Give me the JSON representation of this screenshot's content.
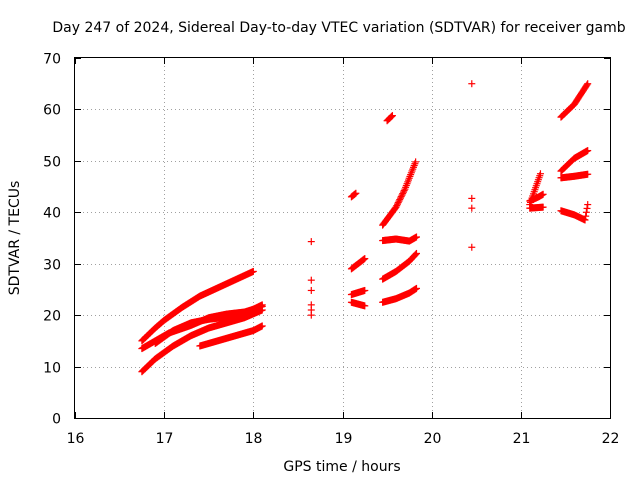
{
  "chart_data": {
    "type": "scatter",
    "title": "Day 247 of 2024, Sidereal Day-to-day VTEC variation (SDTVAR) for receiver gamb",
    "xlabel": "GPS time / hours",
    "ylabel": "SDTVAR / TECUs",
    "xlim": [
      16,
      22
    ],
    "ylim": [
      0,
      70
    ],
    "xticks": [
      "16",
      "17",
      "18",
      "19",
      "20",
      "21",
      "22"
    ],
    "yticks": [
      "0",
      "10",
      "20",
      "30",
      "40",
      "50",
      "60",
      "70"
    ],
    "grid": true,
    "marker_color": "#ff0000",
    "marker": "plus",
    "tracks": [
      {
        "x": [
          16.75,
          16.9,
          17.0,
          17.2,
          17.4,
          17.6,
          17.8,
          18.0
        ],
        "y": [
          15.0,
          17.5,
          19.0,
          21.5,
          23.7,
          25.3,
          26.9,
          28.5
        ]
      },
      {
        "x": [
          16.75,
          16.9,
          17.05,
          17.3,
          17.5,
          17.7,
          17.9,
          18.1
        ],
        "y": [
          13.5,
          15.0,
          16.5,
          18.0,
          19.5,
          20.2,
          20.6,
          21.7
        ]
      },
      {
        "x": [
          16.75,
          16.9,
          17.1,
          17.3,
          17.5,
          17.7,
          17.9,
          18.1
        ],
        "y": [
          9.0,
          11.5,
          14.0,
          16.0,
          17.5,
          18.5,
          19.5,
          21.0
        ]
      },
      {
        "x": [
          16.9,
          17.1,
          17.3,
          17.5,
          17.7,
          17.9,
          18.1
        ],
        "y": [
          14.5,
          17.0,
          18.5,
          19.2,
          19.6,
          20.3,
          22.0
        ]
      },
      {
        "x": [
          17.4,
          17.6,
          17.8,
          18.0,
          18.1
        ],
        "y": [
          14.0,
          15.0,
          16.0,
          17.0,
          17.9
        ]
      },
      {
        "x": [
          19.1,
          19.15
        ],
        "y": [
          43.0,
          43.7
        ]
      },
      {
        "x": [
          19.1,
          19.25
        ],
        "y": [
          29.0,
          31.0
        ]
      },
      {
        "x": [
          19.1,
          19.25
        ],
        "y": [
          24.0,
          24.8
        ]
      },
      {
        "x": [
          19.1,
          19.25
        ],
        "y": [
          22.5,
          21.8
        ]
      },
      {
        "x": [
          19.5,
          19.56
        ],
        "y": [
          57.8,
          58.8
        ]
      },
      {
        "x": [
          19.45,
          19.6,
          19.7,
          19.82
        ],
        "y": [
          37.5,
          41.0,
          44.5,
          49.8
        ]
      },
      {
        "x": [
          19.45,
          19.6,
          19.75,
          19.83
        ],
        "y": [
          34.5,
          34.8,
          34.4,
          35.2
        ]
      },
      {
        "x": [
          19.45,
          19.6,
          19.75,
          19.83
        ],
        "y": [
          27.0,
          28.5,
          30.5,
          32.0
        ]
      },
      {
        "x": [
          19.45,
          19.6,
          19.75,
          19.83
        ],
        "y": [
          22.5,
          23.2,
          24.3,
          25.2
        ]
      },
      {
        "x": [
          21.1,
          21.15,
          21.22
        ],
        "y": [
          41.5,
          44.0,
          47.5
        ]
      },
      {
        "x": [
          21.1,
          21.2,
          21.25
        ],
        "y": [
          42.2,
          43.0,
          43.5
        ]
      },
      {
        "x": [
          21.1,
          21.25
        ],
        "y": [
          40.8,
          41.0
        ]
      },
      {
        "x": [
          21.45,
          21.6,
          21.75
        ],
        "y": [
          58.5,
          61.0,
          65.0
        ]
      },
      {
        "x": [
          21.45,
          21.6,
          21.75
        ],
        "y": [
          48.0,
          50.5,
          52.0
        ]
      },
      {
        "x": [
          21.45,
          21.6,
          21.75
        ],
        "y": [
          46.7,
          47.0,
          47.4
        ]
      },
      {
        "x": [
          21.45,
          21.6,
          21.72,
          21.75
        ],
        "y": [
          40.3,
          39.5,
          38.5,
          41.5
        ]
      }
    ],
    "points": [
      {
        "x": 18.65,
        "y": 34.3
      },
      {
        "x": 18.65,
        "y": 26.8
      },
      {
        "x": 18.65,
        "y": 24.8
      },
      {
        "x": 18.65,
        "y": 22.0
      },
      {
        "x": 18.65,
        "y": 21.0
      },
      {
        "x": 18.65,
        "y": 20.0
      },
      {
        "x": 20.45,
        "y": 65.0
      },
      {
        "x": 20.45,
        "y": 42.7
      },
      {
        "x": 20.45,
        "y": 40.8
      },
      {
        "x": 20.45,
        "y": 33.2
      }
    ]
  }
}
